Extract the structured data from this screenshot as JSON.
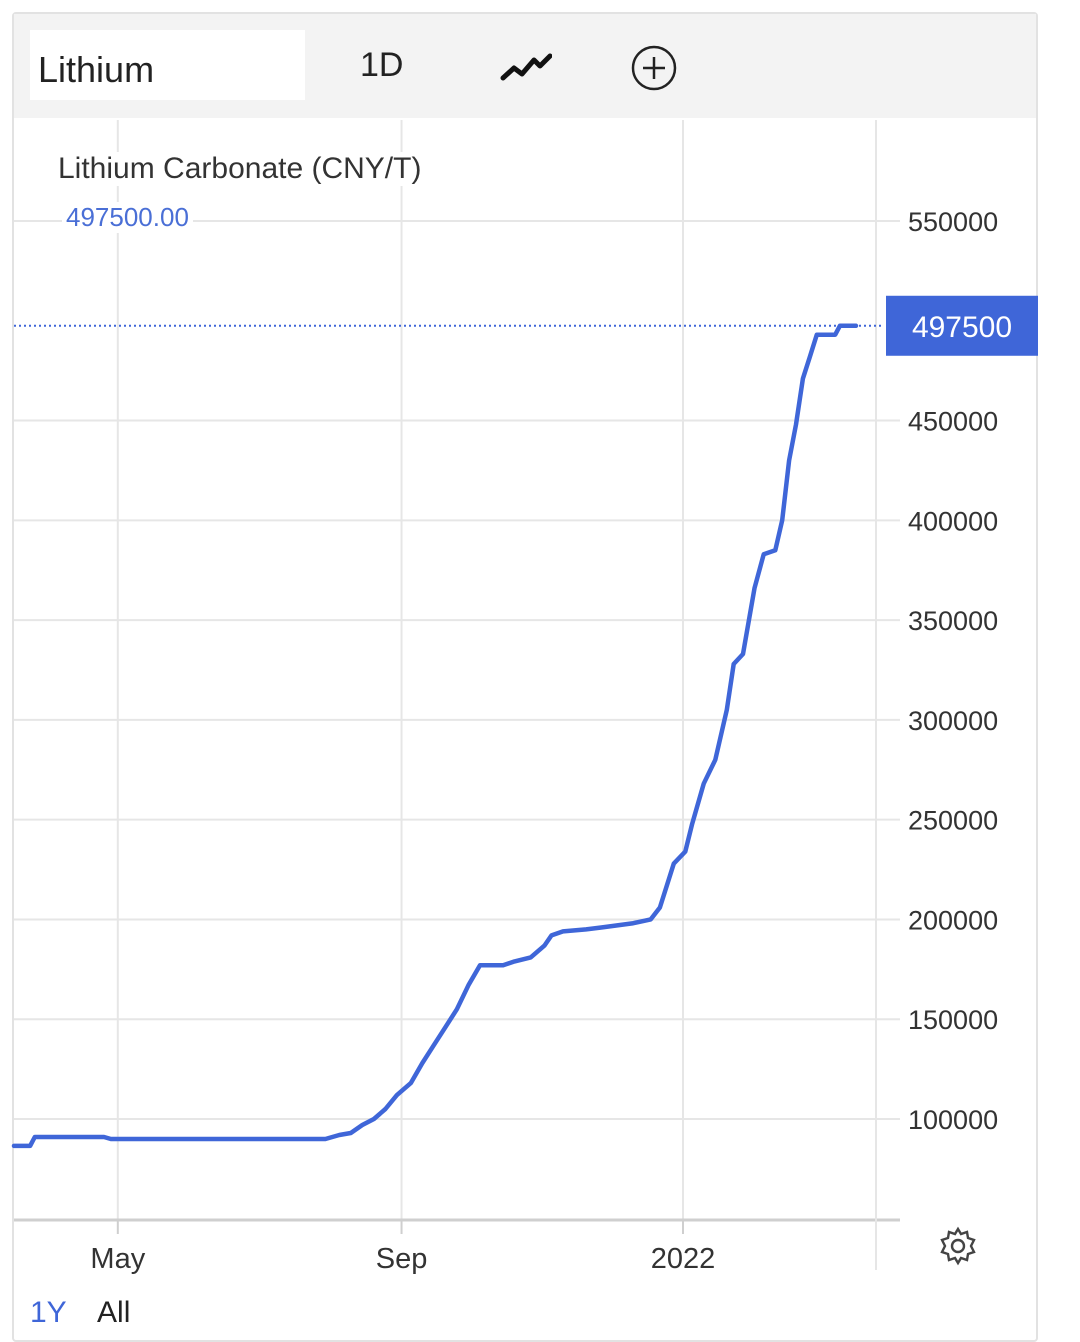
{
  "toolbar": {
    "symbol": "Lithium",
    "interval": "1D"
  },
  "legend": {
    "title": "Lithium Carbonate (CNY/T)",
    "value": "497500.00"
  },
  "range": {
    "tabs": [
      "1Y",
      "All"
    ],
    "active": "1Y"
  },
  "colors": {
    "line": "#3f66d8",
    "label_bg": "#3f66d8",
    "grid": "#e6e6e6"
  },
  "chart_data": {
    "type": "line",
    "title": "Lithium Carbonate (CNY/T)",
    "last_value": 497500,
    "last_label": "497500",
    "x_ticks": [
      {
        "label": "May",
        "x": "2021-05-01"
      },
      {
        "label": "Sep",
        "x": "2021-09-01"
      },
      {
        "label": "2022",
        "x": "2022-01-01"
      }
    ],
    "xlim": [
      "2021-03-17",
      "2022-03-17"
    ],
    "y_ticks": [
      100000,
      150000,
      200000,
      250000,
      300000,
      350000,
      400000,
      450000,
      550000
    ],
    "ylim": [
      50000,
      550000
    ],
    "grid": true,
    "series": [
      {
        "points": [
          [
            "2021-03-17",
            86500
          ],
          [
            "2021-03-24",
            86500
          ],
          [
            "2021-03-26",
            91000
          ],
          [
            "2021-04-25",
            91000
          ],
          [
            "2021-04-28",
            90000
          ],
          [
            "2021-07-30",
            90000
          ],
          [
            "2021-08-05",
            92000
          ],
          [
            "2021-08-10",
            93000
          ],
          [
            "2021-08-15",
            97000
          ],
          [
            "2021-08-20",
            100000
          ],
          [
            "2021-08-25",
            105000
          ],
          [
            "2021-08-30",
            112000
          ],
          [
            "2021-09-05",
            118000
          ],
          [
            "2021-09-10",
            128000
          ],
          [
            "2021-09-15",
            137000
          ],
          [
            "2021-09-20",
            146000
          ],
          [
            "2021-09-25",
            155000
          ],
          [
            "2021-09-30",
            167000
          ],
          [
            "2021-10-05",
            177000
          ],
          [
            "2021-10-15",
            177000
          ],
          [
            "2021-10-20",
            179000
          ],
          [
            "2021-10-27",
            181000
          ],
          [
            "2021-11-02",
            187000
          ],
          [
            "2021-11-05",
            192000
          ],
          [
            "2021-11-10",
            194000
          ],
          [
            "2021-11-20",
            195000
          ],
          [
            "2021-11-27",
            196000
          ],
          [
            "2021-12-10",
            198000
          ],
          [
            "2021-12-18",
            200000
          ],
          [
            "2021-12-22",
            206000
          ],
          [
            "2021-12-28",
            228000
          ],
          [
            "2022-01-02",
            234000
          ],
          [
            "2022-01-05",
            248000
          ],
          [
            "2022-01-10",
            268000
          ],
          [
            "2022-01-15",
            280000
          ],
          [
            "2022-01-20",
            305000
          ],
          [
            "2022-01-23",
            328000
          ],
          [
            "2022-01-27",
            333000
          ],
          [
            "2022-02-01",
            366000
          ],
          [
            "2022-02-05",
            383000
          ],
          [
            "2022-02-10",
            385000
          ],
          [
            "2022-02-13",
            400000
          ],
          [
            "2022-02-16",
            430000
          ],
          [
            "2022-02-19",
            448000
          ],
          [
            "2022-02-22",
            471000
          ],
          [
            "2022-02-25",
            482000
          ],
          [
            "2022-02-28",
            493000
          ],
          [
            "2022-03-08",
            493000
          ],
          [
            "2022-03-10",
            497500
          ],
          [
            "2022-03-17",
            497500
          ]
        ]
      }
    ]
  }
}
